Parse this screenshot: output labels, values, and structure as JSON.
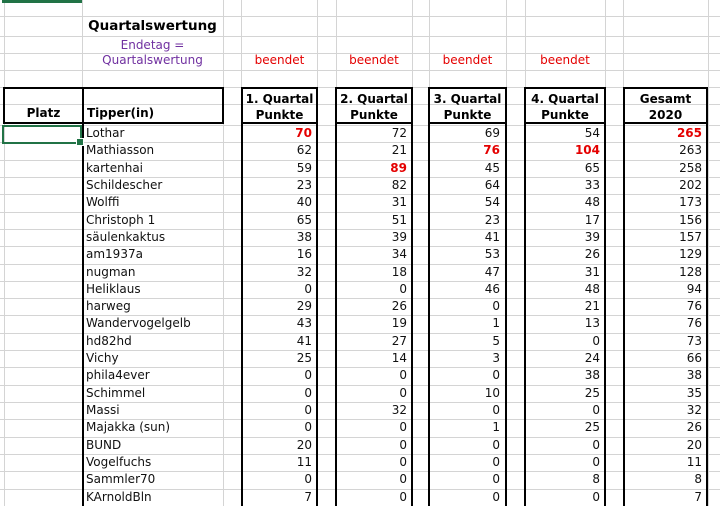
{
  "sheet": {
    "title": "Quartalswertung",
    "subtitle_line1": "Endetag =",
    "subtitle_line2": "Quartalswertung",
    "status_label": "beendet"
  },
  "colors": {
    "accent_green": "#217346",
    "highlight_red": "#e40000",
    "subtitle_purple": "#7030a0",
    "gridline": "#d4d4d4"
  },
  "table": {
    "headers": {
      "platz": "Platz",
      "tipper": "Tipper(in)",
      "q1": {
        "line1": "1. Quartal",
        "line2": "Punkte"
      },
      "q2": {
        "line1": "2. Quartal",
        "line2": "Punkte"
      },
      "q3": {
        "line1": "3. Quartal",
        "line2": "Punkte"
      },
      "q4": {
        "line1": "4. Quartal",
        "line2": "Punkte"
      },
      "total": {
        "line1": "Gesamt",
        "line2": "2020"
      }
    },
    "rows": [
      {
        "name": "Lothar",
        "q1": 70,
        "q2": 72,
        "q3": 69,
        "q4": 54,
        "total": 265,
        "red": [
          "q1",
          "total"
        ]
      },
      {
        "name": "Mathiasson",
        "q1": 62,
        "q2": 21,
        "q3": 76,
        "q4": 104,
        "total": 263,
        "red": [
          "q3",
          "q4"
        ]
      },
      {
        "name": "kartenhai",
        "q1": 59,
        "q2": 89,
        "q3": 45,
        "q4": 65,
        "total": 258,
        "red": [
          "q2"
        ]
      },
      {
        "name": "Schildescher",
        "q1": 23,
        "q2": 82,
        "q3": 64,
        "q4": 33,
        "total": 202,
        "red": []
      },
      {
        "name": "Wolffi",
        "q1": 40,
        "q2": 31,
        "q3": 54,
        "q4": 48,
        "total": 173,
        "red": []
      },
      {
        "name": "Christoph 1",
        "q1": 65,
        "q2": 51,
        "q3": 23,
        "q4": 17,
        "total": 156,
        "red": []
      },
      {
        "name": "säulenkaktus",
        "q1": 38,
        "q2": 39,
        "q3": 41,
        "q4": 39,
        "total": 157,
        "red": []
      },
      {
        "name": "am1937a",
        "q1": 16,
        "q2": 34,
        "q3": 53,
        "q4": 26,
        "total": 129,
        "red": []
      },
      {
        "name": "nugman",
        "q1": 32,
        "q2": 18,
        "q3": 47,
        "q4": 31,
        "total": 128,
        "red": []
      },
      {
        "name": "Heliklaus",
        "q1": 0,
        "q2": 0,
        "q3": 46,
        "q4": 48,
        "total": 94,
        "red": []
      },
      {
        "name": "harweg",
        "q1": 29,
        "q2": 26,
        "q3": 0,
        "q4": 21,
        "total": 76,
        "red": []
      },
      {
        "name": "Wandervogelgelb",
        "q1": 43,
        "q2": 19,
        "q3": 1,
        "q4": 13,
        "total": 76,
        "red": []
      },
      {
        "name": "hd82hd",
        "q1": 41,
        "q2": 27,
        "q3": 5,
        "q4": 0,
        "total": 73,
        "red": []
      },
      {
        "name": "Vichy",
        "q1": 25,
        "q2": 14,
        "q3": 3,
        "q4": 24,
        "total": 66,
        "red": []
      },
      {
        "name": "phila4ever",
        "q1": 0,
        "q2": 0,
        "q3": 0,
        "q4": 38,
        "total": 38,
        "red": []
      },
      {
        "name": "Schimmel",
        "q1": 0,
        "q2": 0,
        "q3": 10,
        "q4": 25,
        "total": 35,
        "red": []
      },
      {
        "name": "Massi",
        "q1": 0,
        "q2": 32,
        "q3": 0,
        "q4": 0,
        "total": 32,
        "red": []
      },
      {
        "name": "Majakka (sun)",
        "q1": 0,
        "q2": 0,
        "q3": 1,
        "q4": 25,
        "total": 26,
        "red": []
      },
      {
        "name": "BUND",
        "q1": 20,
        "q2": 0,
        "q3": 0,
        "q4": 0,
        "total": 20,
        "red": []
      },
      {
        "name": "Vogelfuchs",
        "q1": 11,
        "q2": 0,
        "q3": 0,
        "q4": 0,
        "total": 11,
        "red": []
      },
      {
        "name": "Sammler70",
        "q1": 0,
        "q2": 0,
        "q3": 0,
        "q4": 8,
        "total": 8,
        "red": []
      },
      {
        "name": "KArnoldBln",
        "q1": 7,
        "q2": 0,
        "q3": 0,
        "q4": 0,
        "total": 7,
        "red": []
      }
    ]
  }
}
